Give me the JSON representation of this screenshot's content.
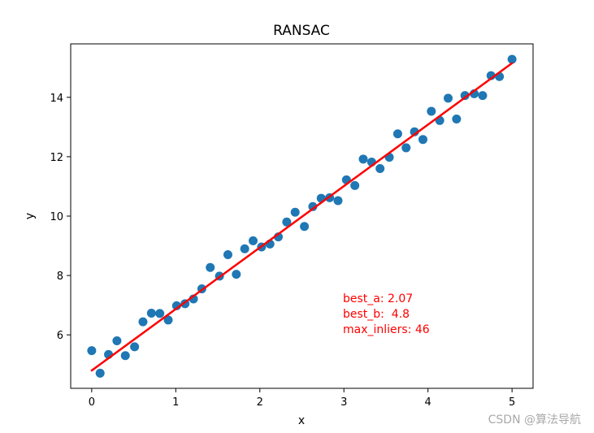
{
  "chart_data": {
    "type": "scatter",
    "title": "RANSAC",
    "xlabel": "x",
    "ylabel": "y",
    "xlim": [
      -0.25,
      5.25
    ],
    "ylim": [
      4.2,
      15.8
    ],
    "x_ticks": [
      0,
      1,
      2,
      3,
      4,
      5
    ],
    "y_ticks": [
      6,
      8,
      10,
      12,
      14
    ],
    "grid": false,
    "series": [
      {
        "type": "scatter",
        "color": "#1f77b4",
        "x": [
          0.0,
          0.1,
          0.2,
          0.3,
          0.4,
          0.51,
          0.61,
          0.71,
          0.81,
          0.91,
          1.01,
          1.11,
          1.21,
          1.31,
          1.41,
          1.52,
          1.62,
          1.72,
          1.82,
          1.92,
          2.02,
          2.12,
          2.22,
          2.32,
          2.42,
          2.53,
          2.63,
          2.73,
          2.83,
          2.93,
          3.03,
          3.13,
          3.23,
          3.33,
          3.43,
          3.54,
          3.64,
          3.74,
          3.84,
          3.94,
          4.04,
          4.14,
          4.24,
          4.34,
          4.44,
          4.55,
          4.65,
          4.75,
          4.85,
          5.0
        ],
        "y": [
          5.47,
          4.71,
          5.34,
          5.8,
          5.3,
          5.6,
          6.44,
          6.73,
          6.72,
          6.5,
          6.98,
          7.05,
          7.21,
          7.55,
          8.27,
          7.98,
          8.7,
          8.04,
          8.9,
          9.17,
          8.96,
          9.06,
          9.3,
          9.8,
          10.13,
          9.65,
          10.32,
          10.6,
          10.62,
          10.52,
          11.22,
          11.03,
          11.92,
          11.82,
          11.6,
          11.98,
          12.77,
          12.3,
          12.84,
          12.58,
          13.53,
          13.22,
          13.97,
          13.27,
          14.06,
          14.12,
          14.06,
          14.73,
          14.7,
          15.28
        ]
      },
      {
        "type": "line",
        "color": "#ff0000",
        "x": [
          0,
          5
        ],
        "y": [
          4.8,
          15.15
        ]
      }
    ],
    "annotation": {
      "color": "#ff0000",
      "lines": [
        "best_a: 2.07",
        "best_b:  4.8",
        "max_inliers: 46"
      ],
      "anchor_x": 3.0,
      "anchor_y": 6.0
    }
  },
  "watermark": "CSDN @算法导航"
}
